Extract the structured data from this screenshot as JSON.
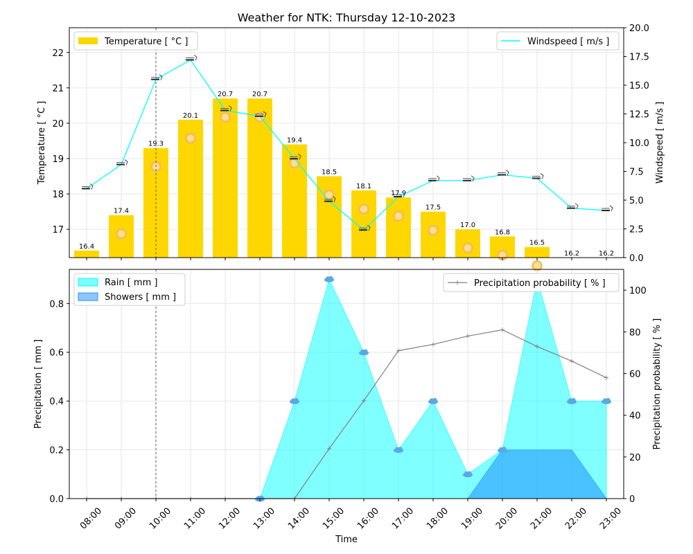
{
  "title": "Weather for NTK: Thursday 12-10-2023",
  "chart_data": [
    {
      "type": "bar",
      "name": "temperature-wind-panel",
      "categories": [
        "08:00",
        "09:00",
        "10:00",
        "11:00",
        "12:00",
        "13:00",
        "14:00",
        "15:00",
        "16:00",
        "17:00",
        "18:00",
        "19:00",
        "20:00",
        "21:00",
        "22:00",
        "23:00"
      ],
      "series": [
        {
          "name": "Temperature [ °C ]",
          "type": "bar",
          "axis": "left",
          "color": "#FFD700",
          "values": [
            16.4,
            17.4,
            19.3,
            20.1,
            20.7,
            20.7,
            19.4,
            18.5,
            18.1,
            17.9,
            17.5,
            17.0,
            16.8,
            16.5,
            16.2,
            16.2
          ],
          "labels": [
            "16.4",
            "17.4",
            "19.3",
            "20.1",
            "20.7",
            "20.7",
            "19.4",
            "18.5",
            "18.1",
            "17.9",
            "17.5",
            "17.0",
            "16.8",
            "16.5",
            "16.2",
            "16.2"
          ]
        },
        {
          "name": "Windspeed [ m/s ]",
          "type": "line",
          "axis": "right",
          "color": "#00FFFF",
          "values": [
            6.0,
            8.1,
            15.5,
            17.2,
            12.8,
            12.3,
            8.6,
            4.9,
            2.4,
            5.3,
            6.7,
            6.7,
            7.2,
            6.9,
            4.3,
            4.1
          ]
        }
      ],
      "ylabel": "Temperature [ °C ]",
      "ylim": [
        16.2,
        22.7
      ],
      "yticks": [
        17,
        18,
        19,
        20,
        21,
        22
      ],
      "y2label": "Windspeed [ m/s ]",
      "y2lim": [
        0,
        20
      ],
      "y2ticks": [
        "0.0",
        "2.5",
        "5.0",
        "7.5",
        "10.0",
        "12.5",
        "15.0",
        "17.5",
        "20.0"
      ],
      "legend_left": "upper-left",
      "legend_right": "upper-right",
      "grid": true,
      "current_time_marker": "10:00"
    },
    {
      "type": "area",
      "name": "precipitation-panel",
      "categories": [
        "08:00",
        "09:00",
        "10:00",
        "11:00",
        "12:00",
        "13:00",
        "14:00",
        "15:00",
        "16:00",
        "17:00",
        "18:00",
        "19:00",
        "20:00",
        "21:00",
        "22:00",
        "23:00"
      ],
      "series": [
        {
          "name": "Rain [ mm ]",
          "type": "area",
          "axis": "left",
          "color": "#00FFFF",
          "values": [
            0,
            0,
            0,
            0,
            0,
            0,
            0.4,
            0.9,
            0.6,
            0.2,
            0.4,
            0.1,
            0.2,
            0.9,
            0.4,
            0.4
          ]
        },
        {
          "name": "Showers [ mm ]",
          "type": "area",
          "axis": "left",
          "color": "#1E90FF",
          "values": [
            0,
            0,
            0,
            0,
            0,
            0,
            0,
            0,
            0,
            0,
            0,
            0,
            0.2,
            0.2,
            0.2,
            0
          ]
        },
        {
          "name": "Precipitation probability [ % ]",
          "type": "line",
          "axis": "right",
          "color": "#808080",
          "values": [
            0,
            0,
            0,
            0,
            0,
            0,
            0,
            24,
            47,
            71,
            74,
            78,
            81,
            73,
            66,
            58
          ]
        }
      ],
      "xlabel": "Time",
      "ylabel": "Precipitation [ mm ]",
      "ylim": [
        0,
        0.94
      ],
      "yticks": [
        "0.0",
        "0.2",
        "0.4",
        "0.6",
        "0.8"
      ],
      "y2label": "Precipitation probability [ % ]",
      "y2lim": [
        0,
        110
      ],
      "y2ticks": [
        "0",
        "20",
        "40",
        "60",
        "80",
        "100"
      ],
      "legend_left": "upper-left",
      "legend_right": "upper-right",
      "grid": true,
      "current_time_marker": "10:00"
    }
  ]
}
